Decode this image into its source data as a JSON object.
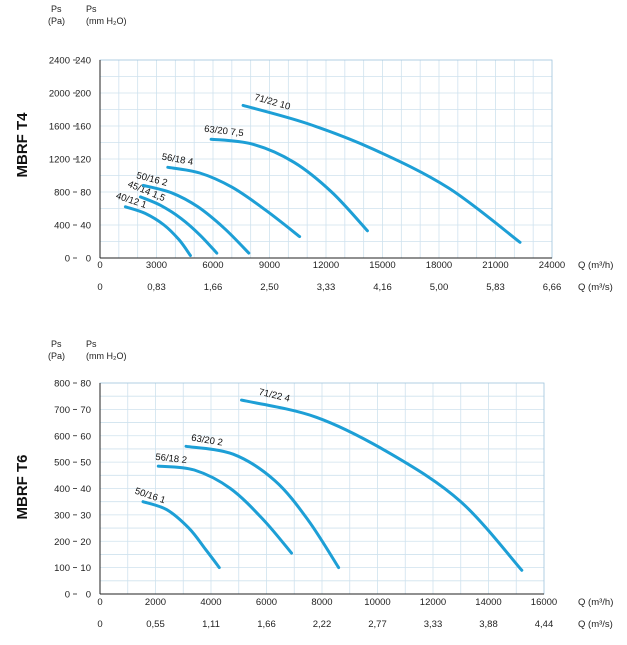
{
  "chart_data": [
    {
      "type": "line",
      "model": "MBRF T4",
      "ylabel_pa": "Ps",
      "ylabel_pa_unit": "(Pa)",
      "ylabel_mm": "Ps",
      "ylabel_mm_unit": "(mm H₂O)",
      "xlabel_m3h": "Q (m³/h)",
      "xlabel_m3s": "Q (m³/s)",
      "xlim": [
        0,
        24000
      ],
      "ylim": [
        0,
        240
      ],
      "x_ticks_m3h": [
        "0",
        "3000",
        "6000",
        "9000",
        "12000",
        "15000",
        "18000",
        "21000",
        "24000"
      ],
      "x_ticks_m3s": [
        "0",
        "0,83",
        "1,66",
        "2,50",
        "3,33",
        "4,16",
        "5,00",
        "5,83",
        "6,66"
      ],
      "y_ticks_mm": [
        "0",
        "40",
        "80",
        "120",
        "160",
        "200",
        "240"
      ],
      "y_ticks_mm_values": [
        0,
        40,
        80,
        120,
        160,
        200,
        240
      ],
      "y_ticks_pa": [
        "0",
        "400",
        "800",
        "1200",
        "1600",
        "2000",
        "2400"
      ],
      "y_ticks_pa_values": [
        0,
        400,
        800,
        1200,
        1600,
        2000,
        2400
      ],
      "grid": true,
      "series": [
        {
          "name": "40/12 1",
          "x": [
            1350,
            2400,
            3400,
            4200,
            4800
          ],
          "y": [
            62,
            54,
            40,
            22,
            3
          ]
        },
        {
          "name": "45/14 1,5",
          "x": [
            2150,
            3200,
            4300,
            5300,
            6200
          ],
          "y": [
            74,
            64,
            48,
            28,
            6
          ]
        },
        {
          "name": "50/16 2",
          "x": [
            2300,
            3800,
            5200,
            6600,
            7900
          ],
          "y": [
            88,
            79,
            62,
            36,
            6
          ]
        },
        {
          "name": "56/18 4",
          "x": [
            3600,
            5300,
            7000,
            8800,
            10600
          ],
          "y": [
            110,
            103,
            86,
            58,
            26
          ]
        },
        {
          "name": "63/20 7,5",
          "x": [
            5900,
            8100,
            10300,
            12300,
            14200
          ],
          "y": [
            144,
            138,
            116,
            80,
            33
          ]
        },
        {
          "name": "71/22 10",
          "x": [
            7600,
            11000,
            14500,
            18500,
            22300
          ],
          "y": [
            185,
            163,
            132,
            85,
            19
          ]
        }
      ]
    },
    {
      "type": "line",
      "model": "MBRF T6",
      "ylabel_pa": "Ps",
      "ylabel_pa_unit": "(Pa)",
      "ylabel_mm": "Ps",
      "ylabel_mm_unit": "(mm H₂O)",
      "xlabel_m3h": "Q (m³/h)",
      "xlabel_m3s": "Q (m³/s)",
      "xlim": [
        0,
        16000
      ],
      "ylim": [
        0,
        80
      ],
      "x_ticks_m3h": [
        "0",
        "2000",
        "4000",
        "6000",
        "8000",
        "10000",
        "12000",
        "14000",
        "16000"
      ],
      "x_ticks_m3s": [
        "0",
        "0,55",
        "1,11",
        "1,66",
        "2,22",
        "2,77",
        "3,33",
        "3,88",
        "4,44"
      ],
      "y_ticks_mm": [
        "0",
        "10",
        "20",
        "30",
        "40",
        "50",
        "60",
        "70",
        "80"
      ],
      "y_ticks_mm_values": [
        0,
        10,
        20,
        30,
        40,
        50,
        60,
        70,
        80
      ],
      "y_ticks_pa": [
        "0",
        "100",
        "200",
        "300",
        "400",
        "500",
        "600",
        "700",
        "800"
      ],
      "y_ticks_pa_values": [
        0,
        100,
        200,
        300,
        400,
        500,
        600,
        700,
        800
      ],
      "grid": true,
      "series": [
        {
          "name": "50/16 1",
          "x": [
            1550,
            2400,
            3200,
            3800,
            4300
          ],
          "y": [
            35,
            32,
            25,
            17,
            10
          ]
        },
        {
          "name": "56/18 2",
          "x": [
            2100,
            3400,
            4700,
            5900,
            6900
          ],
          "y": [
            48.5,
            47,
            40,
            28,
            15.5
          ]
        },
        {
          "name": "63/20 2",
          "x": [
            3100,
            4800,
            6300,
            7500,
            8600
          ],
          "y": [
            56,
            53,
            43,
            28,
            10
          ]
        },
        {
          "name": "71/22 4",
          "x": [
            5100,
            7800,
            10500,
            13000,
            15200
          ],
          "y": [
            73.5,
            67,
            53,
            35,
            9
          ]
        }
      ]
    }
  ]
}
